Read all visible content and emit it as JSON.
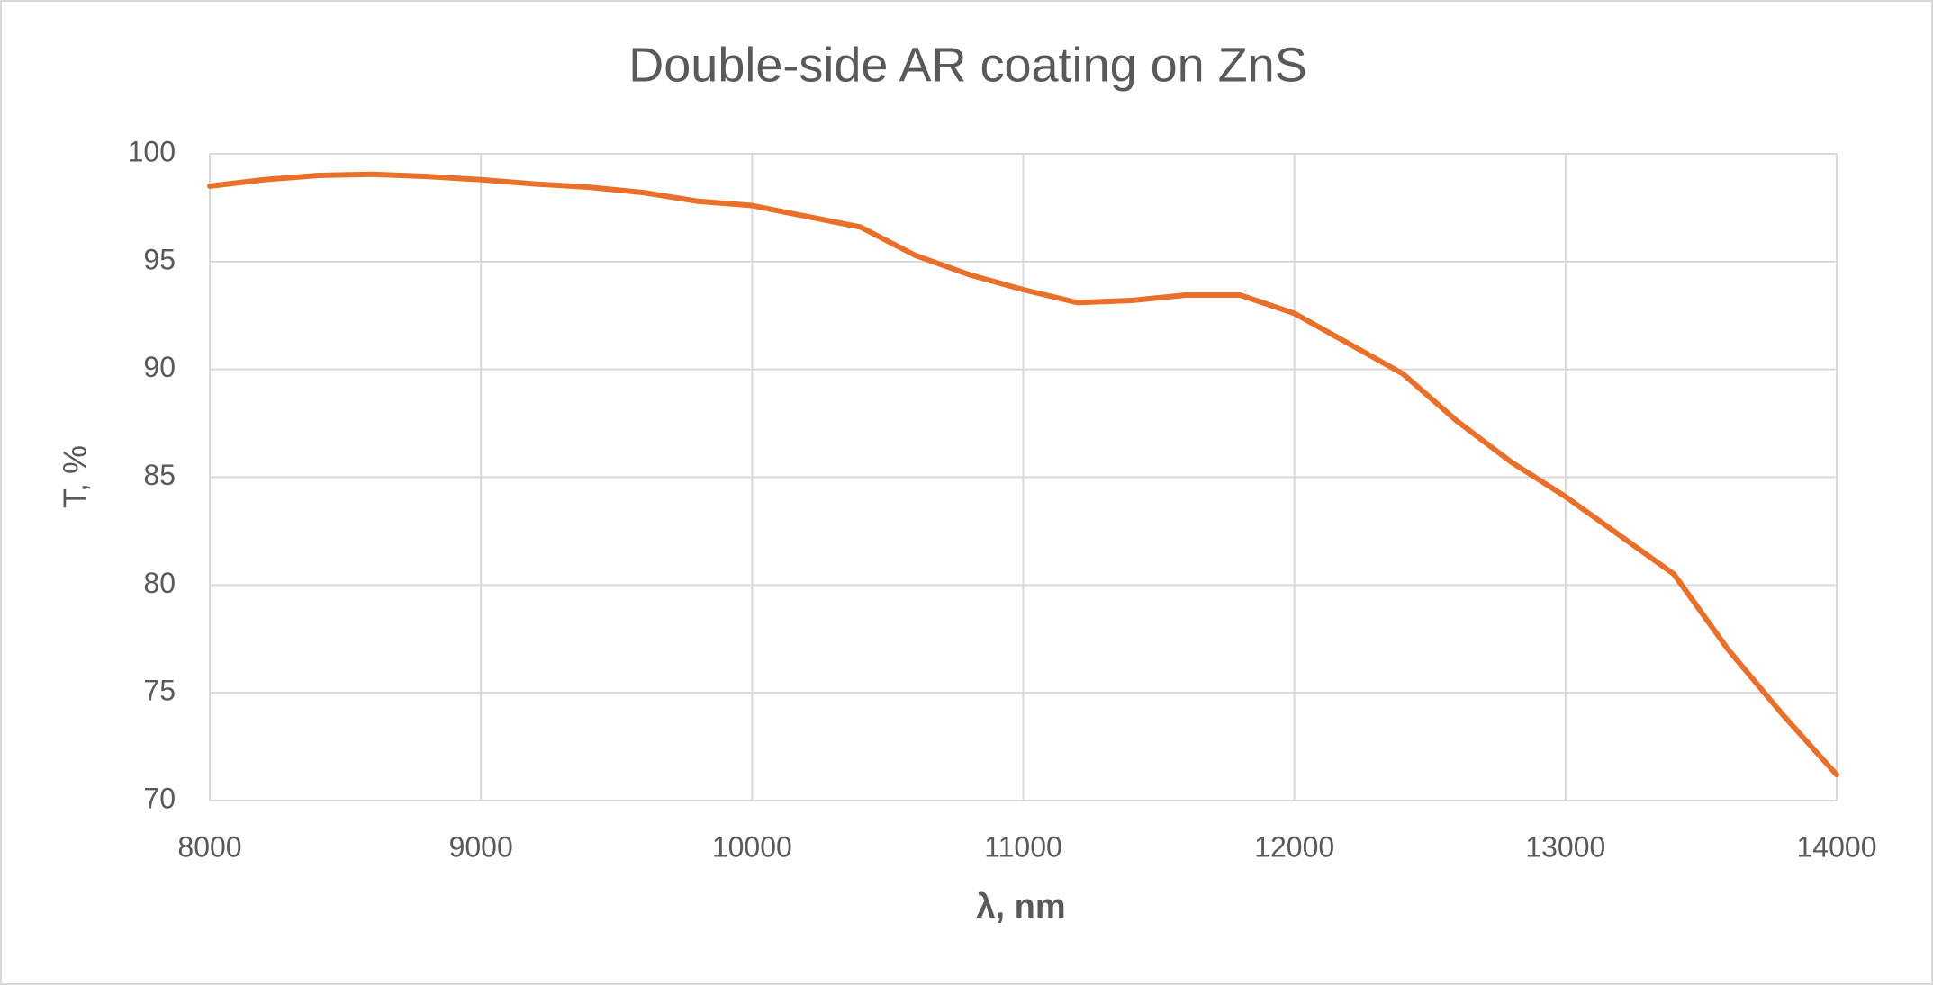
{
  "chart_data": {
    "type": "line",
    "title": "Double-side AR coating on ZnS",
    "x_label": "λ, nm",
    "y_label": "T, %",
    "x": [
      8000,
      8200,
      8400,
      8600,
      8800,
      9000,
      9200,
      9400,
      9600,
      9800,
      10000,
      10200,
      10400,
      10600,
      10800,
      11000,
      11200,
      11400,
      11600,
      11800,
      12000,
      12200,
      12400,
      12600,
      12800,
      13000,
      13200,
      13400,
      13600,
      13800,
      14000
    ],
    "series": [
      {
        "color": "#e8702a",
        "values": [
          98.5,
          98.8,
          99.0,
          99.05,
          98.95,
          98.8,
          98.6,
          98.45,
          98.2,
          97.8,
          97.6,
          97.1,
          96.6,
          95.3,
          94.4,
          93.7,
          93.1,
          93.2,
          93.45,
          93.45,
          92.6,
          91.2,
          89.8,
          87.6,
          85.7,
          84.1,
          82.3,
          80.5,
          77.0,
          74.0,
          71.2
        ]
      }
    ],
    "xlim": [
      8000,
      14000
    ],
    "xticks": [
      8000,
      9000,
      10000,
      11000,
      12000,
      13000,
      14000
    ],
    "ylim": [
      70,
      100
    ],
    "yticks": [
      70,
      75,
      80,
      85,
      90,
      95,
      100
    ],
    "grid": true
  }
}
